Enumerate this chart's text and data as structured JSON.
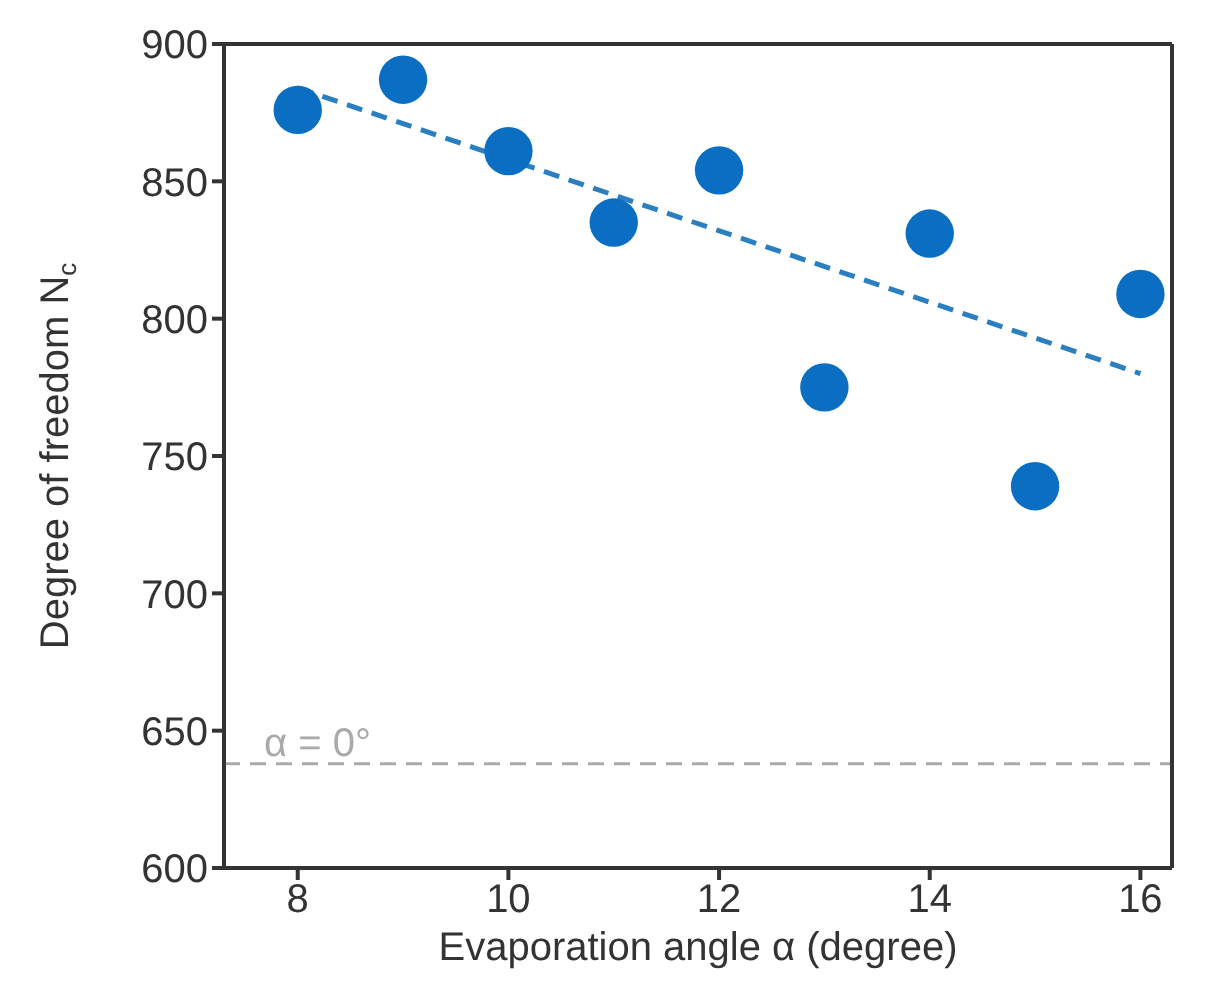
{
  "chart_data": {
    "type": "scatter",
    "xlabel": "Evaporation angle α (degree)",
    "ylabel": "Degree of freedom N$_{c}$",
    "x": [
      8,
      9,
      10,
      11,
      12,
      13,
      14,
      15,
      16
    ],
    "series": [
      {
        "color": "#0a6fc2",
        "marker": "circle",
        "values": [
          876,
          887,
          861,
          835,
          854,
          775,
          831,
          739,
          809
        ]
      },
      {
        "type": "line",
        "color": "#2a7fc0",
        "marker": "none",
        "line_style": "dashed",
        "x": [
          8,
          16
        ],
        "values": [
          884,
          780
        ]
      }
    ],
    "xlim": [
      7.3,
      16.3
    ],
    "xticks": [
      8,
      10,
      12,
      14,
      16
    ],
    "ylim": [
      600,
      900
    ],
    "yticks": [
      600,
      650,
      700,
      750,
      800,
      850,
      900
    ],
    "ref_lines": [
      {
        "axis": "y",
        "value": 638,
        "color": "#aaaaaa",
        "line_style": "dashed"
      }
    ],
    "annotations": [
      {
        "text": "α = 0°",
        "y": 638
      }
    ],
    "grid": false
  }
}
